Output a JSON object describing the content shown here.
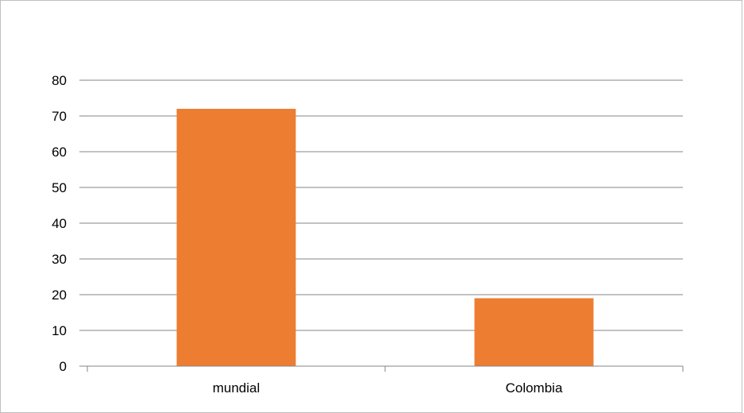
{
  "chart_data": {
    "type": "bar",
    "categories": [
      "mundial",
      "Colombia"
    ],
    "values": [
      72,
      19
    ],
    "title": "",
    "xlabel": "",
    "ylabel": "",
    "ylim": [
      0,
      80
    ],
    "yticks": [
      "0",
      "10",
      "20",
      "30",
      "40",
      "50",
      "60",
      "70",
      "80"
    ],
    "grid": true,
    "legend": "none",
    "colors": {
      "bar": "#ed7d31",
      "grid": "#868686",
      "axis": "#868686",
      "text": "#000000"
    }
  }
}
